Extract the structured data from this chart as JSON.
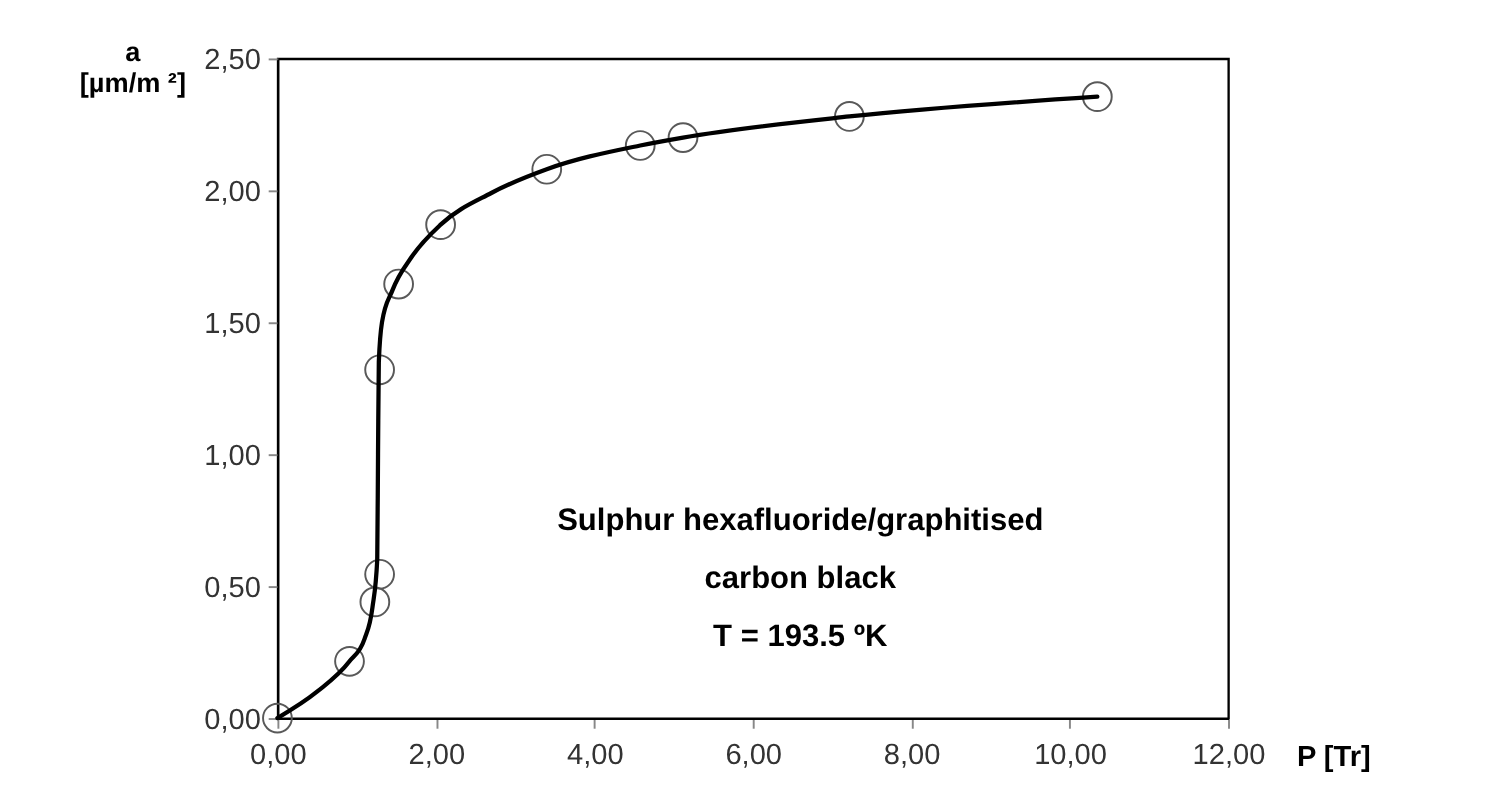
{
  "chart_data": {
    "type": "scatter",
    "xlabel": "P [Tr]",
    "ylabel": "a [µm/m ²]",
    "series": [
      {
        "color": "#595959",
        "marker": "circle",
        "x": [
          0,
          0.91,
          1.23,
          1.29,
          1.29,
          1.53,
          2.06,
          3.4,
          4.58,
          5.12,
          7.22,
          10.35
        ],
        "values": [
          0,
          0.215,
          0.44,
          0.545,
          1.32,
          1.645,
          1.87,
          2.08,
          2.17,
          2.2,
          2.28,
          2.355
        ]
      },
      {
        "type": "line",
        "color": "#000000",
        "marker": "none",
        "line_style": "solid",
        "x": [
          0,
          0.5,
          0.91,
          1.1,
          1.2,
          1.26,
          1.27,
          1.28,
          1.32,
          1.45,
          1.7,
          2.06,
          2.7,
          3.4,
          4.58,
          5.12,
          7.22,
          10.35
        ],
        "values": [
          0,
          0.1,
          0.215,
          0.3,
          0.42,
          0.6,
          1.0,
          1.35,
          1.5,
          1.62,
          1.75,
          1.87,
          1.99,
          2.08,
          2.17,
          2.2,
          2.28,
          2.355
        ]
      }
    ],
    "xlim": [
      0,
      12
    ],
    "xticks": [
      {
        "value": 0,
        "label": "0,00"
      },
      {
        "value": 2,
        "label": "2,00"
      },
      {
        "value": 4,
        "label": "4,00"
      },
      {
        "value": 6,
        "label": "6,00"
      },
      {
        "value": 8,
        "label": "8,00"
      },
      {
        "value": 10,
        "label": "10,00"
      },
      {
        "value": 12,
        "label": "12,00"
      }
    ],
    "ylim": [
      0,
      2.5
    ],
    "yticks": [
      {
        "value": 0,
        "label": "0,00"
      },
      {
        "value": 0.5,
        "label": "0,50"
      },
      {
        "value": 1,
        "label": "1,00"
      },
      {
        "value": 1.5,
        "label": "1,50"
      },
      {
        "value": 2,
        "label": "2,00"
      },
      {
        "value": 2.5,
        "label": "2,50"
      }
    ],
    "grid": false,
    "annotations": [
      "Sulphur hexafluoride/graphitised",
      "carbon black",
      "T =  193.5  ºK"
    ]
  }
}
